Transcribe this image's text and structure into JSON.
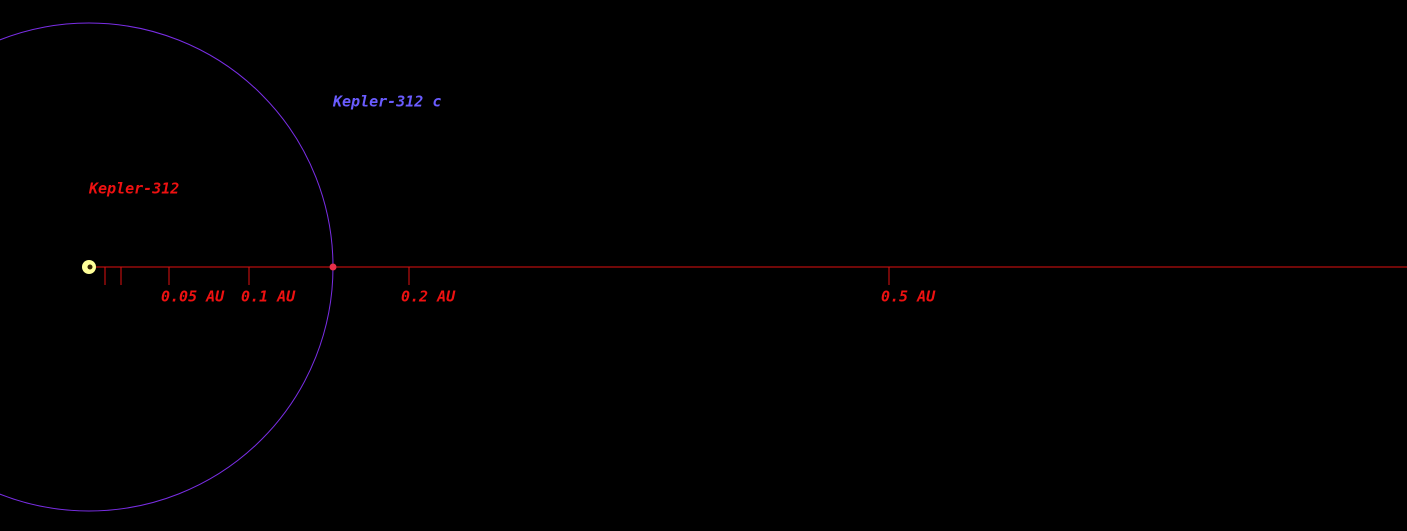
{
  "system": {
    "star": {
      "label": "Kepler-312"
    },
    "planets": [
      {
        "label": "Kepler-312 c",
        "orbit_au": 0.1525
      }
    ],
    "scale": {
      "minor_ticks": [
        0.01,
        0.02
      ],
      "ticks": [
        {
          "value": 0.05,
          "label": "0.05 AU"
        },
        {
          "value": 0.1,
          "label": "0.1 AU"
        },
        {
          "value": 0.2,
          "label": "0.2 AU"
        },
        {
          "value": 0.5,
          "label": "0.5 AU"
        }
      ]
    }
  }
}
